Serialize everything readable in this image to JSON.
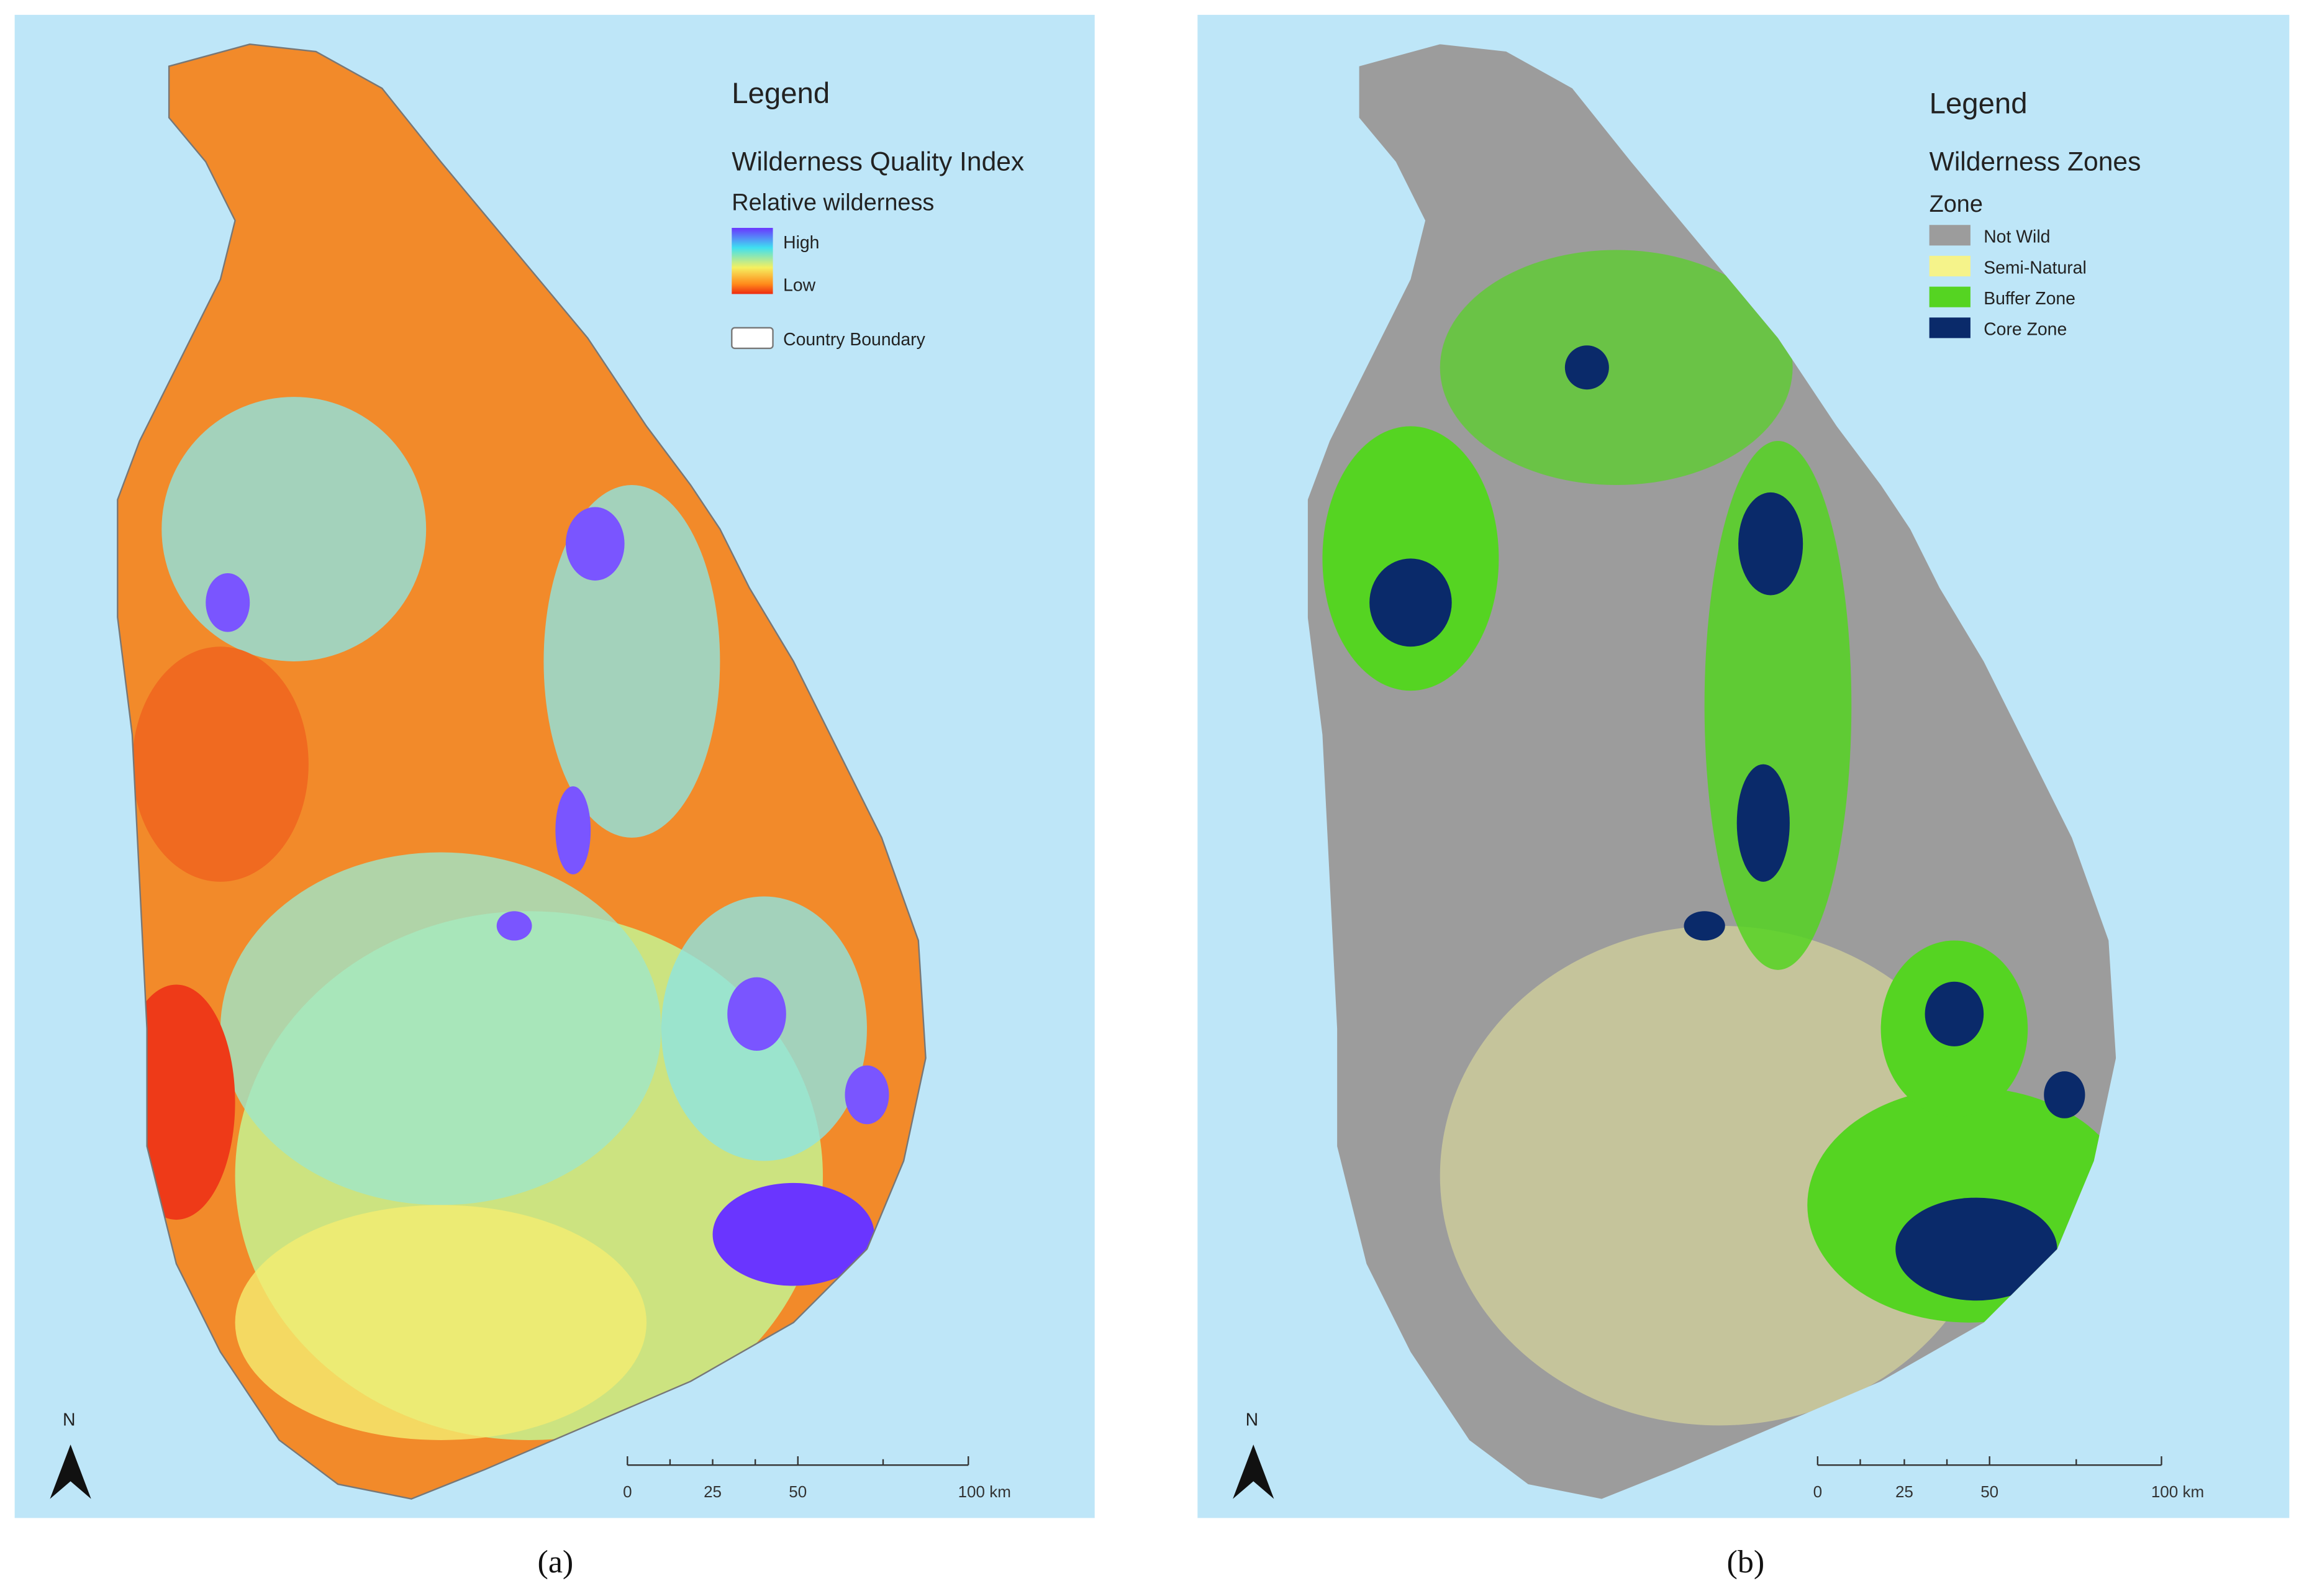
{
  "panels": [
    {
      "caption": "(a)",
      "legend": {
        "title": "Legend",
        "heading": "Wilderness Quality Index",
        "subheading": "Relative wilderness",
        "items": [
          "High",
          "Low",
          "Country Boundary"
        ]
      },
      "north": "N",
      "scale": [
        "0",
        "25",
        "50",
        "100 km"
      ]
    },
    {
      "caption": "(b)",
      "legend": {
        "title": "Legend",
        "heading": "Wilderness Zones",
        "subheading": "Zone",
        "items": [
          "Not Wild",
          "Semi-Natural",
          "Buffer Zone",
          "Core Zone"
        ]
      },
      "north": "N",
      "scale": [
        "0",
        "25",
        "50",
        "100 km"
      ]
    }
  ]
}
